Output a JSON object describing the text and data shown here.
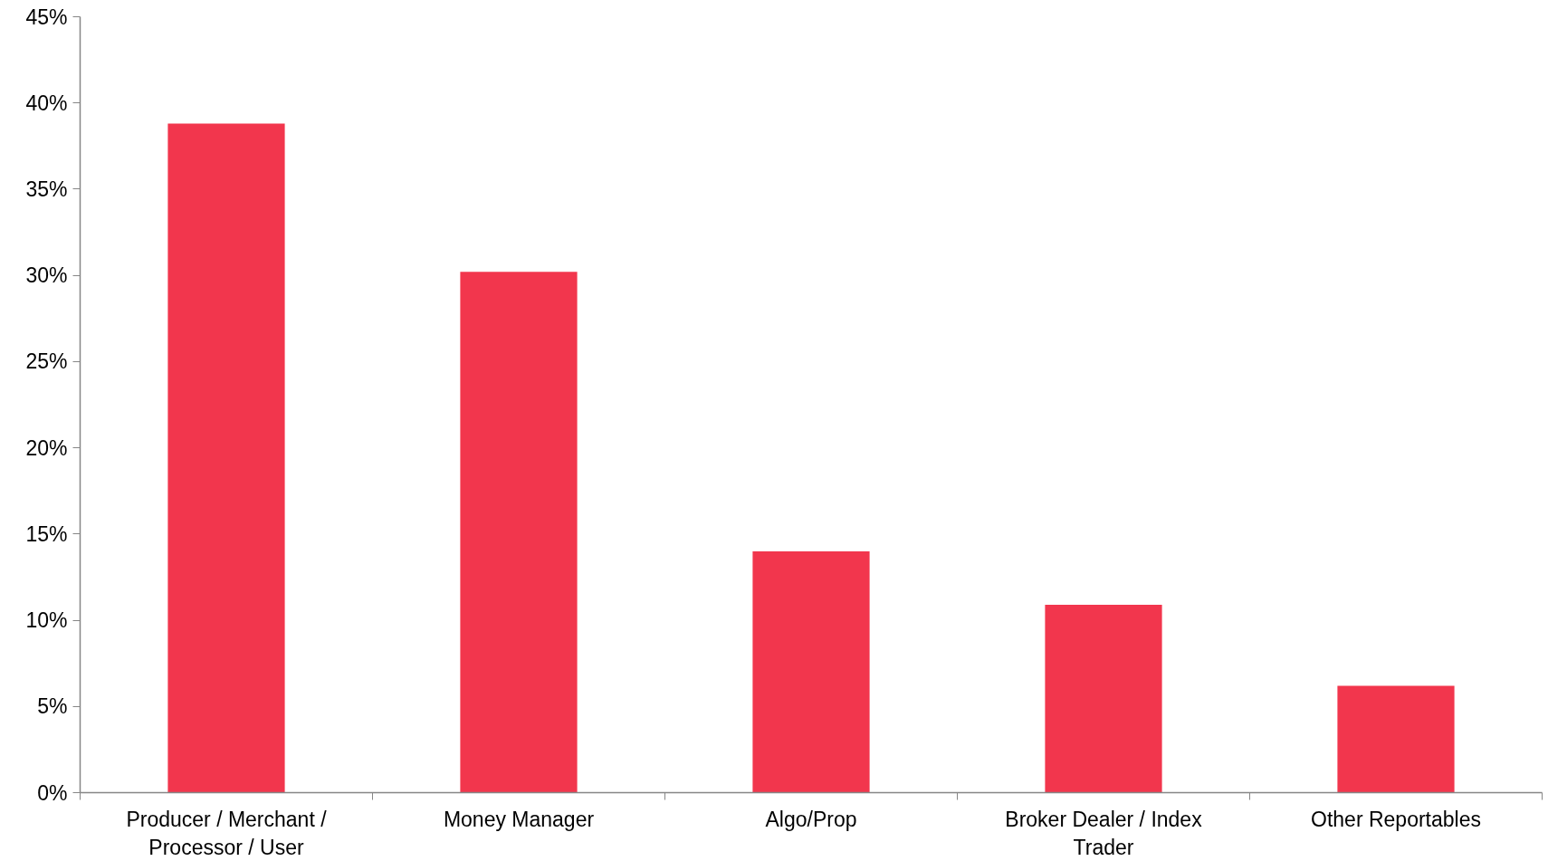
{
  "chart_data": {
    "type": "bar",
    "categories": [
      "Producer / Merchant / Processor / User",
      "Money Manager",
      "Algo/Prop",
      "Broker Dealer / Index Trader",
      "Other Reportables"
    ],
    "values": [
      38.8,
      30.2,
      14.0,
      10.9,
      6.2
    ],
    "color": "#f2364d",
    "ylim": [
      0,
      45
    ],
    "yticks": [
      {
        "value": 0,
        "label": "0%"
      },
      {
        "value": 5,
        "label": "5%"
      },
      {
        "value": 10,
        "label": "10%"
      },
      {
        "value": 15,
        "label": "15%"
      },
      {
        "value": 20,
        "label": "20%"
      },
      {
        "value": 25,
        "label": "25%"
      },
      {
        "value": 30,
        "label": "30%"
      },
      {
        "value": 35,
        "label": "35%"
      },
      {
        "value": 40,
        "label": "40%"
      },
      {
        "value": 45,
        "label": "45%"
      }
    ]
  }
}
